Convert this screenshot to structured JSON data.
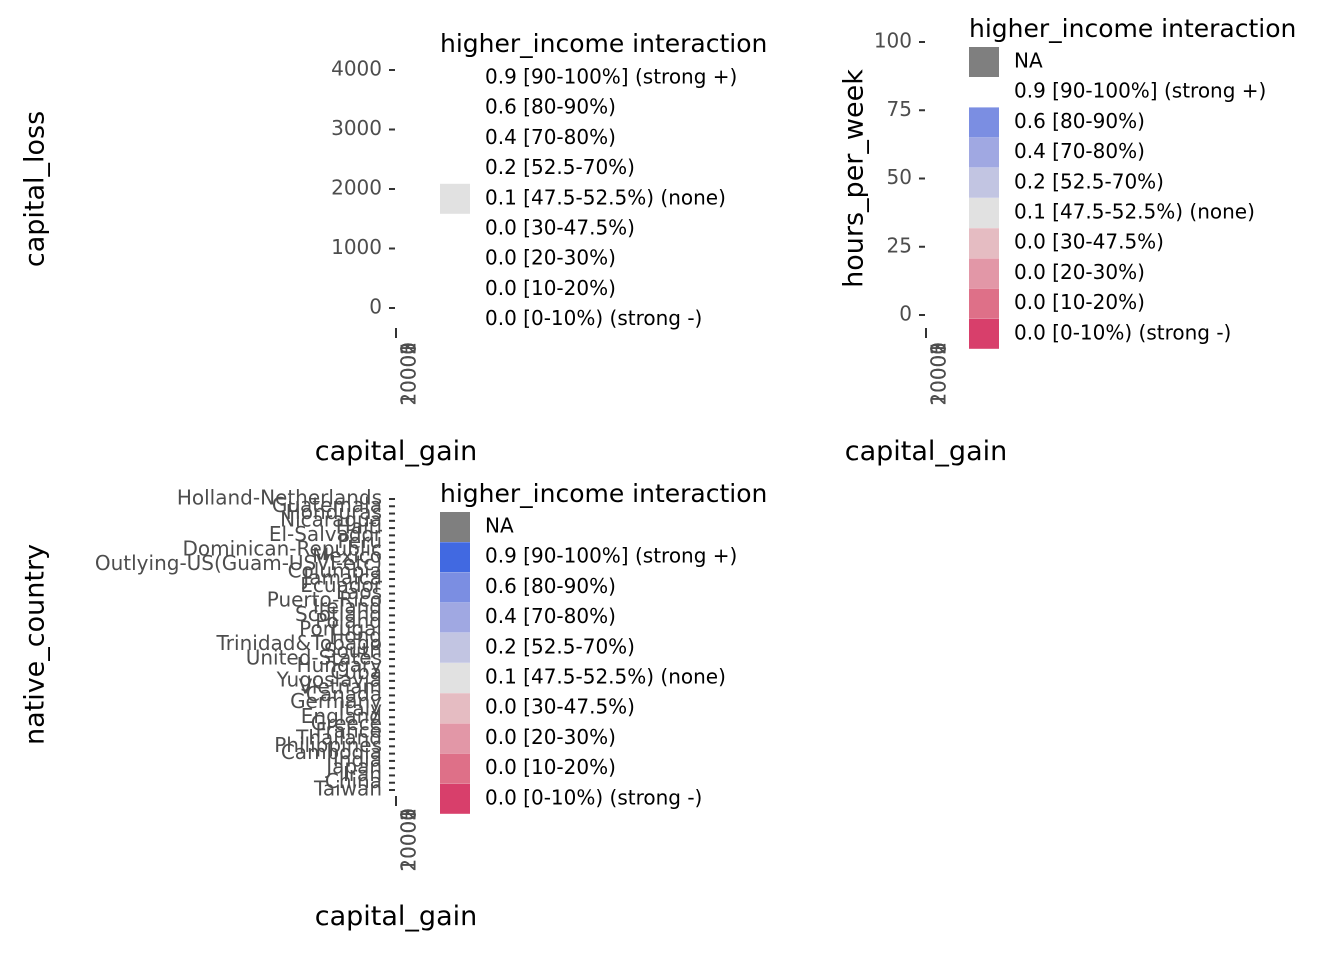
{
  "colors": {
    "na": "#7f7f7f",
    "strong_pos": "#4169e1",
    "pos_80_90": "#7b8ee2",
    "pos_70_80": "#a0a8e2",
    "pos_52_70": "#c2c5e2",
    "none": "#e1e1e1",
    "neg_30_47": "#e5bcc2",
    "neg_20_30": "#e297a7",
    "neg_10_20": "#de7088",
    "strong_neg": "#d83f6b"
  },
  "chart_data": [
    {
      "type": "heatmap",
      "xlabel": "capital_gain",
      "ylabel": "capital_loss",
      "x_ticks": [
        "1",
        "2",
        "5",
        "10000",
        "20000"
      ],
      "y_ticks": [
        "0",
        "1000",
        "2000",
        "3000",
        "4000"
      ],
      "ylim": [
        0,
        4000
      ],
      "legend": {
        "title": "higher_income interaction",
        "items": [
          {
            "label": "0.9 [90-100%] (strong +)",
            "color": null
          },
          {
            "label": "0.6 [80-90%)",
            "color": null
          },
          {
            "label": "0.4 [70-80%)",
            "color": null
          },
          {
            "label": "0.2 [52.5-70%)",
            "color": null
          },
          {
            "label": "0.1 [47.5-52.5%) (none)",
            "color": "#e1e1e1"
          },
          {
            "label": "0.0 [30-47.5%)",
            "color": null
          },
          {
            "label": "0.0 [20-30%)",
            "color": null
          },
          {
            "label": "0.0 [10-20%)",
            "color": null
          },
          {
            "label": "0.0 [0-10%) (strong -)",
            "color": null
          }
        ]
      }
    },
    {
      "type": "heatmap",
      "xlabel": "capital_gain",
      "ylabel": "hours_per_week",
      "x_ticks": [
        "1",
        "2",
        "5",
        "10000",
        "20000"
      ],
      "y_ticks": [
        "0",
        "25",
        "50",
        "75",
        "100"
      ],
      "ylim": [
        0,
        100
      ],
      "legend": {
        "title": "higher_income interaction",
        "items": [
          {
            "label": "NA",
            "color": "#7f7f7f"
          },
          {
            "label": "0.9 [90-100%] (strong +)",
            "color": null
          },
          {
            "label": "0.6 [80-90%)",
            "color": "#7b8ee2"
          },
          {
            "label": "0.4 [70-80%)",
            "color": "#a0a8e2"
          },
          {
            "label": "0.2 [52.5-70%)",
            "color": "#c2c5e2"
          },
          {
            "label": "0.1 [47.5-52.5%) (none)",
            "color": "#e1e1e1"
          },
          {
            "label": "0.0 [30-47.5%)",
            "color": "#e5bcc2"
          },
          {
            "label": "0.0 [20-30%)",
            "color": "#e297a7"
          },
          {
            "label": "0.0 [10-20%)",
            "color": "#de7088"
          },
          {
            "label": "0.0 [0-10%) (strong -)",
            "color": "#d83f6b"
          }
        ]
      }
    },
    {
      "type": "heatmap",
      "xlabel": "capital_gain",
      "ylabel": "native_country",
      "x_ticks": [
        "1",
        "2",
        "5",
        "10000",
        "20000"
      ],
      "y_categories": [
        "Holland-Netherlands",
        "Guatemala",
        "Honduras",
        "Nicaragua",
        "Haiti",
        "El-Salvador",
        "Peru",
        "Dominican-Republic",
        "Mexico",
        "Outlying-US(Guam-USVI-etc)",
        "Columbia",
        "Jamaica",
        "Ecuador",
        "Laos",
        "Puerto-Rico",
        "Ireland",
        "Scotland",
        "Poland",
        "Portugal",
        "Hong",
        "Trinidad&Tobago",
        "South",
        "United-States",
        "Hungary",
        "Cuba",
        "Yugoslavia",
        "Vietnam",
        "Canada",
        "Germany",
        "Italy",
        "England",
        "Greece",
        "France",
        "Thailand",
        "Philippines",
        "Cambodia",
        "India",
        "Japan",
        "Iran",
        "China",
        "Taiwan"
      ],
      "legend": {
        "title": "higher_income interaction",
        "items": [
          {
            "label": "NA",
            "color": "#7f7f7f"
          },
          {
            "label": "0.9 [90-100%] (strong +)",
            "color": "#4169e1"
          },
          {
            "label": "0.6 [80-90%)",
            "color": "#7b8ee2"
          },
          {
            "label": "0.4 [70-80%)",
            "color": "#a0a8e2"
          },
          {
            "label": "0.2 [52.5-70%)",
            "color": "#c2c5e2"
          },
          {
            "label": "0.1 [47.5-52.5%) (none)",
            "color": "#e1e1e1"
          },
          {
            "label": "0.0 [30-47.5%)",
            "color": "#e5bcc2"
          },
          {
            "label": "0.0 [20-30%)",
            "color": "#e297a7"
          },
          {
            "label": "0.0 [10-20%)",
            "color": "#de7088"
          },
          {
            "label": "0.0 [0-10%) (strong -)",
            "color": "#d83f6b"
          }
        ]
      }
    }
  ]
}
